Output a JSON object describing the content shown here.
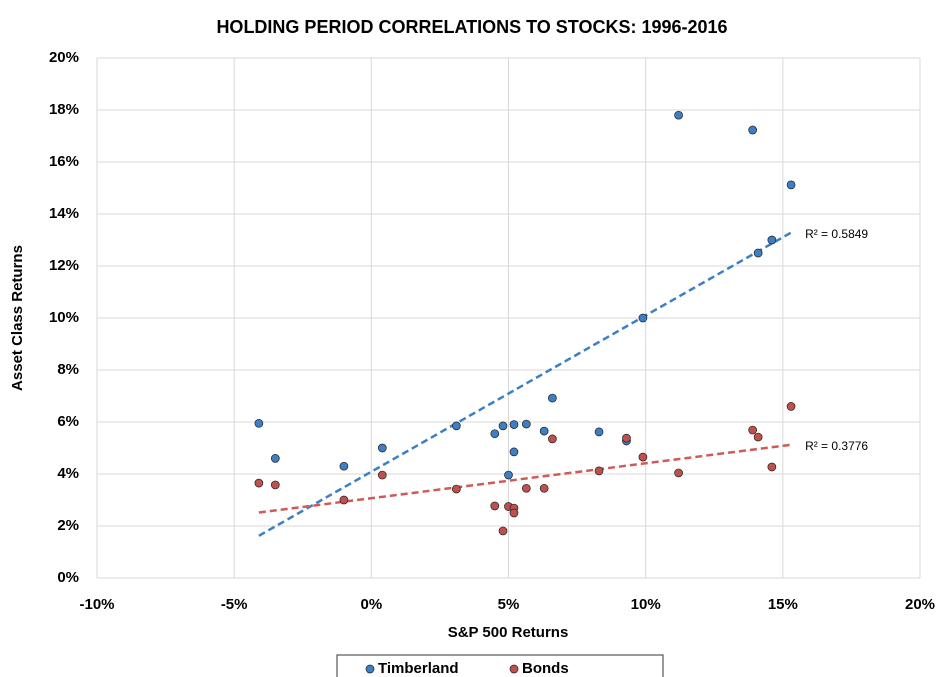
{
  "chart_data": {
    "type": "scatter",
    "title": "HOLDING PERIOD CORRELATIONS TO STOCKS: 1996-2016",
    "x_label": "S&P 500 Returns",
    "y_label": "Asset Class Returns",
    "xlim": [
      -10,
      20
    ],
    "ylim": [
      0,
      20
    ],
    "xticks": [
      {
        "value": -10,
        "label": "-10%"
      },
      {
        "value": -5,
        "label": "-5%"
      },
      {
        "value": 0,
        "label": "0%"
      },
      {
        "value": 5,
        "label": "5%"
      },
      {
        "value": 10,
        "label": "10%"
      },
      {
        "value": 15,
        "label": "15%"
      },
      {
        "value": 20,
        "label": "20%"
      }
    ],
    "yticks": [
      {
        "value": 0,
        "label": "0%"
      },
      {
        "value": 2,
        "label": "2%"
      },
      {
        "value": 4,
        "label": "4%"
      },
      {
        "value": 6,
        "label": "6%"
      },
      {
        "value": 8,
        "label": "8%"
      },
      {
        "value": 10,
        "label": "10%"
      },
      {
        "value": 12,
        "label": "12%"
      },
      {
        "value": 14,
        "label": "14%"
      },
      {
        "value": 16,
        "label": "16%"
      },
      {
        "value": 18,
        "label": "18%"
      },
      {
        "value": 20,
        "label": "20%"
      }
    ],
    "grid": true,
    "legend": "bottom",
    "series": [
      {
        "name": "Timberland",
        "color": "#3d7fc4",
        "trendline_color": "#3d7fc4",
        "r_squared": {
          "value": 0.5849,
          "label": "R² = 0.5849"
        },
        "x": [
          -4.1,
          -3.5,
          -1.0,
          0.4,
          3.1,
          4.5,
          4.8,
          5.2,
          5.0,
          5.2,
          5.65,
          6.3,
          6.6,
          8.3,
          9.3,
          9.9,
          11.2,
          13.9,
          14.1,
          14.6,
          15.3
        ],
        "values": [
          5.95,
          4.6,
          4.3,
          5.0,
          5.85,
          5.55,
          5.85,
          5.9,
          3.96,
          4.85,
          5.92,
          5.65,
          6.92,
          5.62,
          5.27,
          10.0,
          17.8,
          17.23,
          12.5,
          13.0,
          15.12
        ]
      },
      {
        "name": "Bonds",
        "color": "#c0504d",
        "trendline_color": "#d05a57",
        "r_squared": {
          "value": 0.3776,
          "label": "R² = 0.3776"
        },
        "x": [
          -4.1,
          -3.5,
          -1.0,
          0.4,
          3.1,
          4.5,
          4.8,
          5.0,
          5.2,
          5.2,
          5.65,
          6.3,
          6.6,
          8.3,
          9.3,
          9.9,
          11.2,
          13.9,
          14.1,
          14.6,
          15.3
        ],
        "values": [
          3.65,
          3.58,
          3.0,
          3.96,
          3.42,
          2.77,
          1.81,
          2.75,
          2.69,
          2.5,
          3.45,
          3.45,
          5.35,
          4.12,
          5.38,
          4.65,
          4.04,
          5.69,
          5.42,
          4.27,
          6.6
        ]
      }
    ]
  }
}
